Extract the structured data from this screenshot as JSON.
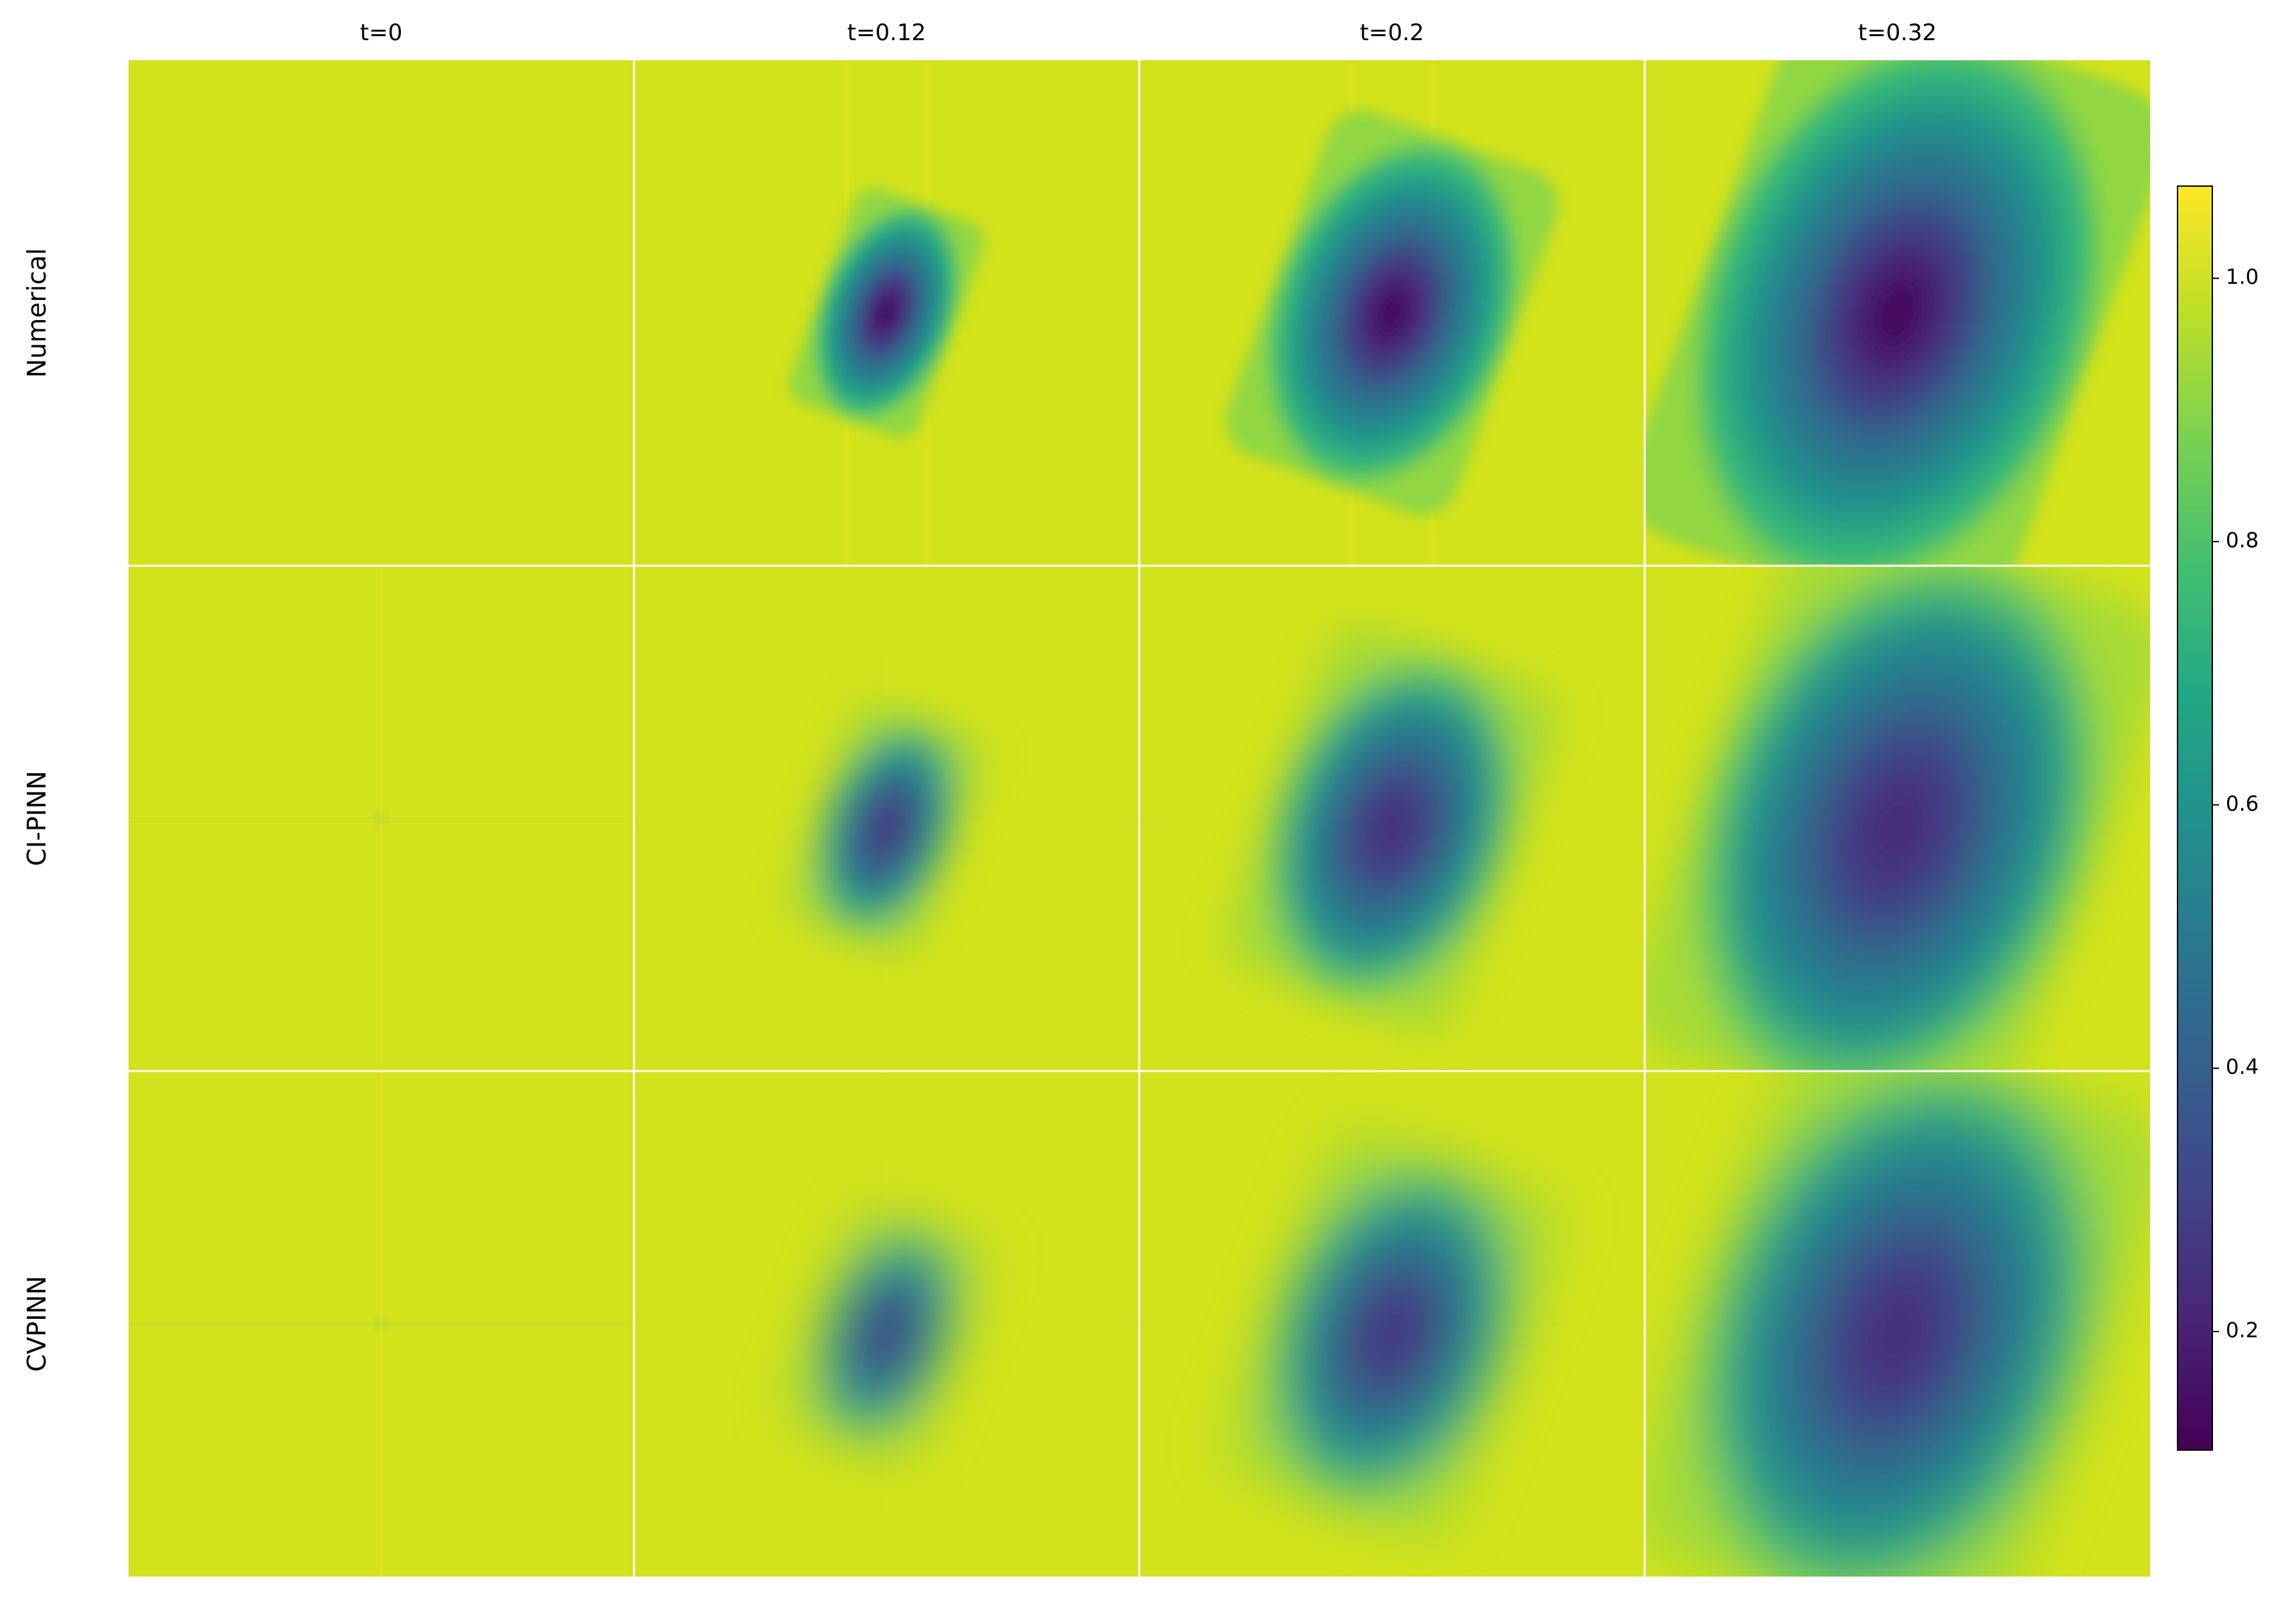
{
  "chart_data": {
    "type": "image-grid",
    "columns": [
      "t=0",
      "t=0.12",
      "t=0.2",
      "t=0.32"
    ],
    "rows": [
      "Numerical",
      "CI-PINN",
      "CVPINN"
    ],
    "colorbar": {
      "clim": [
        0.11,
        1.07
      ],
      "ticks": [
        0.2,
        0.4,
        0.6,
        0.8,
        {
          "value": 1,
          "label": "1.0"
        }
      ]
    }
  }
}
